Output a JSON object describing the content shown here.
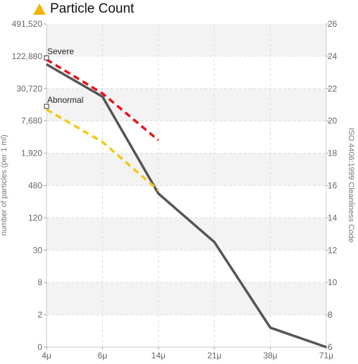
{
  "title": "Particle Count",
  "colors": {
    "title_icon": "#f5b400",
    "actual": "#555555",
    "severe": "#e8141b",
    "abnormal": "#f2c81a",
    "band": "#f3f3f3",
    "grid": "#dddddd"
  },
  "chart_data": {
    "type": "line",
    "title": "Particle Count",
    "xlabel": "",
    "ylabel": "number of particles (per 1 ml)",
    "y2label": "ISO 4406:1999 Cleanliness Code",
    "categories": [
      "4μ",
      "6μ",
      "14μ",
      "21μ",
      "38μ",
      "71μ"
    ],
    "y_ticks": [
      "0",
      "2",
      "8",
      "30",
      "120",
      "480",
      "1,920",
      "7,680",
      "30,720",
      "122,880",
      "491,520"
    ],
    "y2_ticks": [
      "6",
      "8",
      "10",
      "12",
      "14",
      "16",
      "18",
      "20",
      "22",
      "24",
      "26"
    ],
    "y2lim": [
      6,
      26
    ],
    "grid": true,
    "annotations": [
      "Severe",
      "Abnormal"
    ],
    "series": [
      {
        "values": [
          23.5,
          21.5,
          15.5,
          12.5,
          7.2,
          6.0
        ],
        "style": "solid",
        "color": "#555555"
      },
      {
        "values": [
          23.8,
          21.7,
          18.8,
          null,
          null,
          null
        ],
        "style": "dashed",
        "color": "#e8141b"
      },
      {
        "values": [
          20.7,
          18.7,
          15.7,
          null,
          null,
          null
        ],
        "style": "dashed",
        "color": "#f2c81a"
      }
    ],
    "thresholds": [
      {
        "label": "Severe",
        "value": 23.9
      },
      {
        "label": "Abnormal",
        "value": 20.9
      }
    ]
  }
}
